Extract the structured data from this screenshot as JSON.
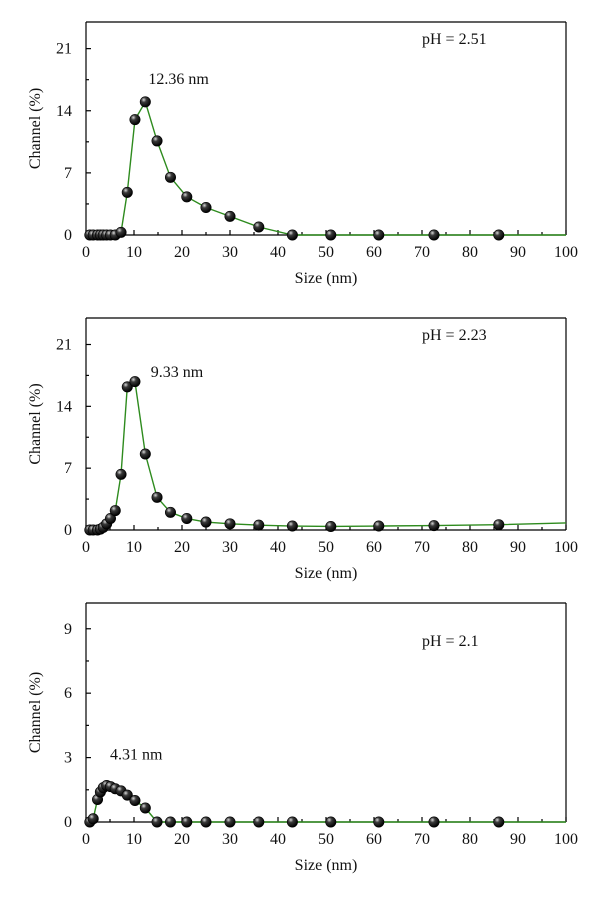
{
  "chart_data": [
    {
      "type": "line",
      "xlabel": "Size (nm)",
      "ylabel": "Channel (%)",
      "xlim": [
        0,
        100
      ],
      "ylim": [
        0,
        24
      ],
      "xticks": [
        "0",
        "10",
        "20",
        "30",
        "40",
        "50",
        "60",
        "70",
        "80",
        "90",
        "100"
      ],
      "yticks": [
        "0",
        "7",
        "14",
        "21"
      ],
      "xtick_values": [
        0,
        10,
        20,
        30,
        40,
        50,
        60,
        70,
        80,
        90,
        100
      ],
      "ytick_values": [
        0,
        7,
        14,
        21
      ],
      "annotations": [
        {
          "text": "pH = 2.51",
          "x": 70,
          "y": 21.5
        },
        {
          "text": "12.36 nm",
          "x": 13,
          "y": 17
        }
      ],
      "line_color": "#2e8b1e",
      "marker": "black-sphere",
      "series": [
        {
          "x": [
            0.8,
            1.5,
            2.4,
            3.0,
            3.6,
            4.3,
            5.1,
            6.1,
            7.3,
            8.6,
            10.2,
            12.36,
            14.8,
            17.6,
            21.0,
            25.0,
            30.0,
            36.0,
            43.0,
            51.0,
            61.0,
            72.5,
            86.0,
            100
          ],
          "y": [
            0,
            0,
            0,
            0,
            0,
            0,
            0,
            0,
            0.3,
            4.8,
            13.0,
            15.0,
            10.6,
            6.5,
            4.3,
            3.1,
            2.1,
            0.9,
            0,
            0,
            0,
            0,
            0,
            0
          ]
        }
      ]
    },
    {
      "type": "line",
      "xlabel": "Size (nm)",
      "ylabel": "Channel (%)",
      "xlim": [
        0,
        100
      ],
      "ylim": [
        0,
        24
      ],
      "xticks": [
        "0",
        "10",
        "20",
        "30",
        "40",
        "50",
        "60",
        "70",
        "80",
        "90",
        "100"
      ],
      "yticks": [
        "0",
        "7",
        "14",
        "21"
      ],
      "xtick_values": [
        0,
        10,
        20,
        30,
        40,
        50,
        60,
        70,
        80,
        90,
        100
      ],
      "ytick_values": [
        0,
        7,
        14,
        21
      ],
      "annotations": [
        {
          "text": "pH = 2.23",
          "x": 70,
          "y": 21.5
        },
        {
          "text": "9.33 nm",
          "x": 13.5,
          "y": 17.3
        }
      ],
      "line_color": "#2e8b1e",
      "marker": "black-sphere",
      "series": [
        {
          "x": [
            0.8,
            1.5,
            2.4,
            3.0,
            3.6,
            4.3,
            5.1,
            6.1,
            7.3,
            8.6,
            10.2,
            12.36,
            14.8,
            17.6,
            21.0,
            25.0,
            30.0,
            36.0,
            43.0,
            51.0,
            61.0,
            72.5,
            86.0,
            100
          ],
          "y": [
            0,
            0,
            0,
            0.1,
            0.3,
            0.7,
            1.3,
            2.2,
            6.3,
            16.2,
            16.8,
            8.6,
            3.7,
            2.0,
            1.3,
            0.9,
            0.7,
            0.55,
            0.45,
            0.4,
            0.45,
            0.5,
            0.6,
            0.8
          ]
        }
      ]
    },
    {
      "type": "line",
      "xlabel": "Size (nm)",
      "ylabel": "Channel (%)",
      "xlim": [
        0,
        100
      ],
      "ylim": [
        0,
        10.2
      ],
      "xticks": [
        "0",
        "10",
        "20",
        "30",
        "40",
        "50",
        "60",
        "70",
        "80",
        "90",
        "100"
      ],
      "yticks": [
        "0",
        "3",
        "6",
        "9"
      ],
      "xtick_values": [
        0,
        10,
        20,
        30,
        40,
        50,
        60,
        70,
        80,
        90,
        100
      ],
      "ytick_values": [
        0,
        3,
        6,
        9
      ],
      "annotations": [
        {
          "text": "pH = 2.1",
          "x": 70,
          "y": 8.2
        },
        {
          "text": "4.31 nm",
          "x": 5,
          "y": 2.9
        }
      ],
      "line_color": "#2e8b1e",
      "marker": "black-sphere",
      "series": [
        {
          "x": [
            0.8,
            1.5,
            2.4,
            3.0,
            3.6,
            4.3,
            5.1,
            6.1,
            7.3,
            8.6,
            10.2,
            12.36,
            14.8,
            17.6,
            21.0,
            25.0,
            30.0,
            36.0,
            43.0,
            51.0,
            61.0,
            72.5,
            86.0,
            100
          ],
          "y": [
            0,
            0.15,
            1.05,
            1.4,
            1.6,
            1.7,
            1.65,
            1.55,
            1.45,
            1.25,
            1.0,
            0.65,
            0,
            0,
            0,
            0,
            0,
            0,
            0,
            0,
            0,
            0,
            0,
            0
          ]
        }
      ]
    }
  ]
}
